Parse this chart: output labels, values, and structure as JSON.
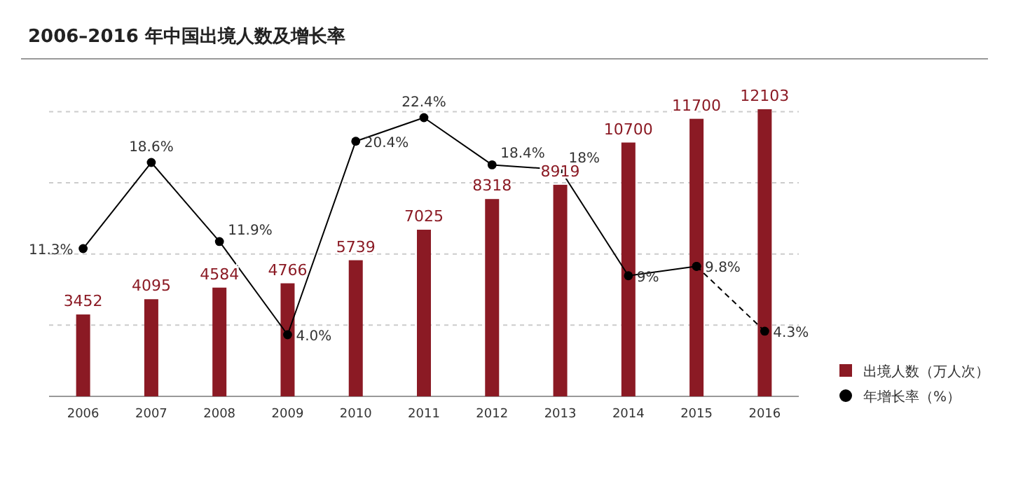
{
  "chart_data": {
    "type": "bar",
    "title": "2006–2016 年中国出境人数及增长率",
    "categories": [
      "2006",
      "2007",
      "2008",
      "2009",
      "2010",
      "2011",
      "2012",
      "2013",
      "2014",
      "2015",
      "2016"
    ],
    "series": [
      {
        "name": "出境人数（万人次）",
        "color": "#8b1a24",
        "values": [
          3452,
          4095,
          4584,
          4766,
          5739,
          7025,
          8318,
          8919,
          10700,
          11700,
          12103
        ]
      },
      {
        "name": "年增长率（%）",
        "type": "line",
        "axis": "y2",
        "color": "#000000",
        "marker": "circle",
        "line_style": "solid",
        "values": [
          11.3,
          18.6,
          11.9,
          4.0,
          20.4,
          22.4,
          18.4,
          18,
          9,
          9.8,
          null
        ],
        "value_labels": [
          "11.3%",
          "18.6%",
          "11.9%",
          "4.0%",
          "20.4%",
          "22.4%",
          "18.4%",
          "18%",
          "9%",
          "9.8%",
          null
        ]
      },
      {
        "type": "line",
        "axis": "y2",
        "color": "#000000",
        "marker": "circle",
        "line_style": "dashed",
        "values": [
          null,
          null,
          null,
          null,
          null,
          null,
          null,
          null,
          null,
          9.8,
          4.3
        ],
        "value_labels": [
          null,
          null,
          null,
          null,
          null,
          null,
          null,
          null,
          null,
          null,
          "4.3%"
        ]
      }
    ],
    "yticks": [
      {
        "value": 3000,
        "label": null
      },
      {
        "value": 6000,
        "label": null
      },
      {
        "value": 9000,
        "label": null
      },
      {
        "value": 12000,
        "label": null
      }
    ],
    "grid": "y",
    "legend": "right",
    "tick_labels": "x",
    "data_labels": true
  }
}
